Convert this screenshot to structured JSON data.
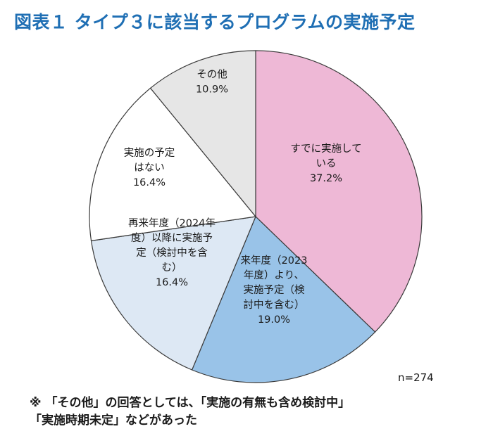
{
  "chart_data": {
    "type": "pie",
    "title": "図表１ タイプ３に該当するプログラムの実施予定",
    "sample_size": "n=274",
    "slices": [
      {
        "label_lines": [
          "すでに実施して",
          "いる"
        ],
        "value_text": "37.2%",
        "value": 37.2,
        "color": "#eeb8d6"
      },
      {
        "label_lines": [
          "来年度（2023",
          "年度）より、",
          "実施予定（検",
          "討中を含む）"
        ],
        "value_text": "19.0%",
        "value": 19.0,
        "color": "#99c3e8"
      },
      {
        "label_lines": [
          "再来年度（2024年",
          "度）以降に実施予",
          "定（検討中を含",
          "む）"
        ],
        "value_text": "16.4%",
        "value": 16.4,
        "color": "#dde8f4"
      },
      {
        "label_lines": [
          "実施の予定",
          "はない"
        ],
        "value_text": "16.4%",
        "value": 16.4,
        "color": "#ffffff"
      },
      {
        "label_lines": [
          "その他"
        ],
        "value_text": "10.9%",
        "value": 10.9,
        "color": "#e6e6e6"
      }
    ]
  },
  "footnote": {
    "line1": "※ 「その他」の回答としては、「実施の有無も含め検討中」",
    "line2": "「実施時期未定」などがあった"
  }
}
